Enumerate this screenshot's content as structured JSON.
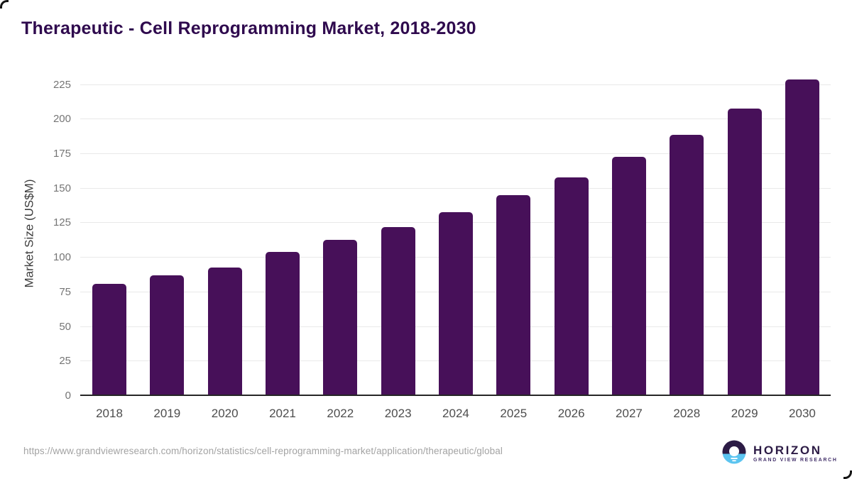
{
  "header": {
    "title": "Therapeutic - Cell Reprogramming Market, 2018-2030"
  },
  "chart_data": {
    "type": "bar",
    "title": "Therapeutic - Cell Reprogramming Market, 2018-2030",
    "categories": [
      "2018",
      "2019",
      "2020",
      "2021",
      "2022",
      "2023",
      "2024",
      "2025",
      "2026",
      "2027",
      "2028",
      "2029",
      "2030"
    ],
    "values": [
      81,
      87,
      93,
      104,
      113,
      122,
      133,
      145,
      158,
      173,
      189,
      208,
      229
    ],
    "xlabel": "",
    "ylabel": "Market Size (US$M)",
    "ylim": [
      0,
      235
    ],
    "yticks": [
      0,
      25,
      50,
      75,
      100,
      125,
      150,
      175,
      200,
      225
    ],
    "grid": "horizontal",
    "legend": "none",
    "bar_color": "#471059",
    "axis_color": "#262626",
    "gridline_color": "#e9e9e9"
  },
  "footer": {
    "source_url": "https://www.grandviewresearch.com/horizon/statistics/cell-reprogramming-market/application/therapeutic/global",
    "logo": {
      "name": "HORIZON",
      "subtitle": "GRAND VIEW RESEARCH",
      "dark_color": "#2c1b45",
      "accent_color": "#5bc4f0"
    }
  }
}
